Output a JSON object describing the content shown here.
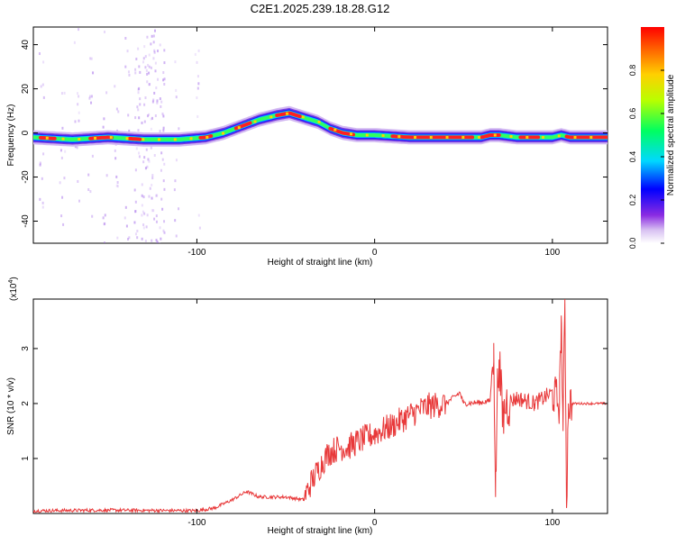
{
  "title": "C2E1.2025.239.18.28.G12",
  "chart_data": [
    {
      "type": "heatmap",
      "xlabel": "Height of straight line (km)",
      "ylabel": "Frequency (Hz)",
      "xlim": [
        -192,
        131
      ],
      "ylim": [
        -50,
        48
      ],
      "xticks": [
        -100,
        0,
        100
      ],
      "yticks": [
        -40,
        -20,
        0,
        20,
        40
      ],
      "ridge": {
        "x": [
          -192,
          -170,
          -150,
          -130,
          -110,
          -95,
          -85,
          -75,
          -65,
          -55,
          -48,
          -40,
          -32,
          -25,
          -18,
          -10,
          0,
          20,
          40,
          60,
          65,
          70,
          80,
          90,
          100,
          105,
          110,
          131
        ],
        "y": [
          -2,
          -3,
          -2,
          -3,
          -3,
          -2,
          0,
          3,
          6,
          8,
          9,
          7,
          5,
          2,
          0,
          -1,
          -1,
          -2,
          -2,
          -2,
          -1,
          -1,
          -2,
          -2,
          -2,
          -1,
          -2,
          -2
        ]
      },
      "colorbar": {
        "label": "Normalized spectral amplitude",
        "range": [
          0,
          1
        ],
        "ticks": [
          0.0,
          0.2,
          0.4,
          0.6,
          0.8
        ],
        "tick_labels": [
          "0.0",
          "0.2",
          "0.4",
          "0.6",
          "0.8"
        ]
      }
    },
    {
      "type": "line",
      "xlabel": "Height of straight line (km)",
      "ylabel": "SNR (10 * v/v)",
      "exponent_label": "(x10",
      "exponent_power": "4",
      "exponent_close": ")",
      "xlim": [
        -192,
        131
      ],
      "ylim": [
        0,
        3.9
      ],
      "xticks": [
        -100,
        0,
        100
      ],
      "yticks": [
        1,
        2,
        3
      ],
      "color": "#e8393a",
      "series": [
        {
          "name": "SNR",
          "x": [
            -192,
            -150,
            -100,
            -90,
            -80,
            -72,
            -65,
            -50,
            -40,
            -36,
            -30,
            -26,
            -20,
            -15,
            -10,
            0,
            10,
            20,
            30,
            40,
            48,
            50,
            60,
            65,
            67,
            68,
            69,
            70,
            72,
            74,
            80,
            90,
            100,
            104,
            105,
            106,
            107,
            108,
            109,
            110,
            115,
            131
          ],
          "y": [
            0.05,
            0.06,
            0.05,
            0.1,
            0.25,
            0.4,
            0.3,
            0.3,
            0.25,
            0.55,
            0.9,
            1.1,
            1.2,
            1.2,
            1.3,
            1.45,
            1.6,
            1.8,
            1.95,
            2.0,
            2.2,
            2.0,
            2.02,
            2.05,
            3.1,
            0.3,
            2.2,
            2.8,
            1.7,
            2.0,
            2.1,
            2.0,
            2.2,
            2.0,
            3.6,
            1.5,
            3.9,
            0.1,
            2.0,
            2.0,
            2.0,
            2.0
          ]
        }
      ]
    }
  ]
}
